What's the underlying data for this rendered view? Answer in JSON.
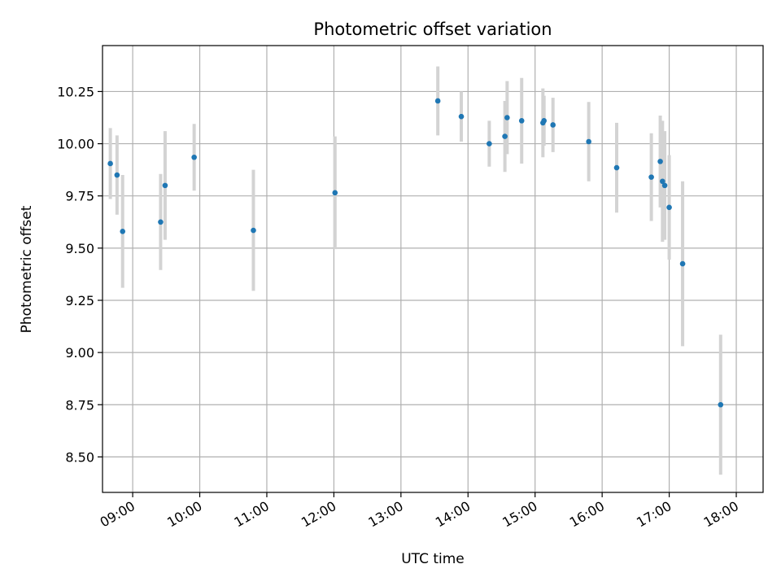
{
  "chart_data": {
    "type": "scatter",
    "title": "Photometric offset variation",
    "xlabel": "UTC time",
    "ylabel": "Photometric offset",
    "x_axis": "time",
    "xlim": [
      "08:33",
      "18:24"
    ],
    "ylim": [
      8.33,
      10.47
    ],
    "x_ticks": [
      "09:00",
      "10:00",
      "11:00",
      "12:00",
      "13:00",
      "14:00",
      "15:00",
      "16:00",
      "17:00",
      "18:00"
    ],
    "y_ticks": [
      8.5,
      8.75,
      9.0,
      9.25,
      9.5,
      9.75,
      10.0,
      10.25
    ],
    "grid": true,
    "colors": {
      "marker": "#1f77b4",
      "errorbar": "#d3d3d3",
      "grid": "#b0b0b0"
    },
    "series": [
      {
        "points": [
          {
            "x": "08:40",
            "y": 9.905,
            "err": 0.17
          },
          {
            "x": "08:46",
            "y": 9.85,
            "err": 0.19
          },
          {
            "x": "08:51",
            "y": 9.58,
            "err": 0.27
          },
          {
            "x": "09:25",
            "y": 9.625,
            "err": 0.23
          },
          {
            "x": "09:29",
            "y": 9.8,
            "err": 0.26
          },
          {
            "x": "09:55",
            "y": 9.935,
            "err": 0.16
          },
          {
            "x": "10:48",
            "y": 9.585,
            "err": 0.29
          },
          {
            "x": "12:01",
            "y": 9.765,
            "err": 0.27
          },
          {
            "x": "13:33",
            "y": 10.205,
            "err": 0.165
          },
          {
            "x": "13:54",
            "y": 10.13,
            "err": 0.12
          },
          {
            "x": "14:19",
            "y": 10.0,
            "err": 0.11
          },
          {
            "x": "14:33",
            "y": 10.035,
            "err": 0.17
          },
          {
            "x": "14:35",
            "y": 10.125,
            "err": 0.175
          },
          {
            "x": "14:48",
            "y": 10.11,
            "err": 0.205
          },
          {
            "x": "15:07",
            "y": 10.1,
            "err": 0.165
          },
          {
            "x": "15:08",
            "y": 10.11,
            "err": 0.12
          },
          {
            "x": "15:16",
            "y": 10.09,
            "err": 0.13
          },
          {
            "x": "15:48",
            "y": 10.01,
            "err": 0.19
          },
          {
            "x": "16:13",
            "y": 9.885,
            "err": 0.215
          },
          {
            "x": "16:44",
            "y": 9.84,
            "err": 0.21
          },
          {
            "x": "16:52",
            "y": 9.915,
            "err": 0.22
          },
          {
            "x": "16:54",
            "y": 9.82,
            "err": 0.29
          },
          {
            "x": "16:56",
            "y": 9.8,
            "err": 0.26
          },
          {
            "x": "17:00",
            "y": 9.695,
            "err": 0.25
          },
          {
            "x": "17:12",
            "y": 9.425,
            "err": 0.395
          },
          {
            "x": "17:46",
            "y": 8.75,
            "err": 0.335
          }
        ]
      }
    ]
  }
}
